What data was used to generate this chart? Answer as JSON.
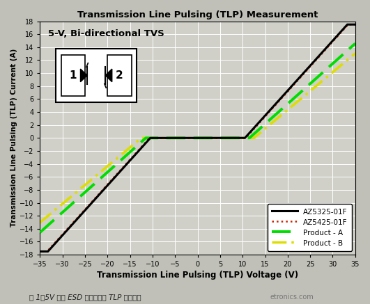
{
  "title": "Transmission Line Pulsing (TLP) Measurement",
  "xlabel": "Transmission Line Pulsing (TLP) Voltage (V)",
  "ylabel": "Transmission Line Pulsing (TLP) Current (A)",
  "xlim": [
    -35,
    35
  ],
  "ylim": [
    -18,
    18
  ],
  "xticks": [
    -35,
    -30,
    -25,
    -20,
    -15,
    -10,
    -5,
    0,
    5,
    10,
    15,
    20,
    25,
    30,
    35
  ],
  "yticks": [
    -18,
    -16,
    -14,
    -12,
    -10,
    -8,
    -6,
    -4,
    -2,
    0,
    2,
    4,
    6,
    8,
    10,
    12,
    14,
    16,
    18
  ],
  "plot_bg_color": "#d0d0c8",
  "fig_bg_color": "#c0c0b8",
  "grid_color": "#ffffff",
  "annotation_text": "5-V, Bi-directional TVS",
  "caption": "图 1：5V 双向 ESD 保护组件的 TLP 测试曲线",
  "watermark": "etronics.com",
  "legend_labels": [
    "AZ5325-01F",
    "AZ5425-01F",
    "Product - A",
    "Product - B"
  ],
  "az5325_vbreak": 10.5,
  "az5325_slope": 0.77,
  "az5425_vbreak": 10.7,
  "az5425_slope": 0.77,
  "prodA_vbreak": 11.5,
  "prodA_slope": 0.62,
  "prodB_vbreak": 12.5,
  "prodB_slope": 0.58
}
